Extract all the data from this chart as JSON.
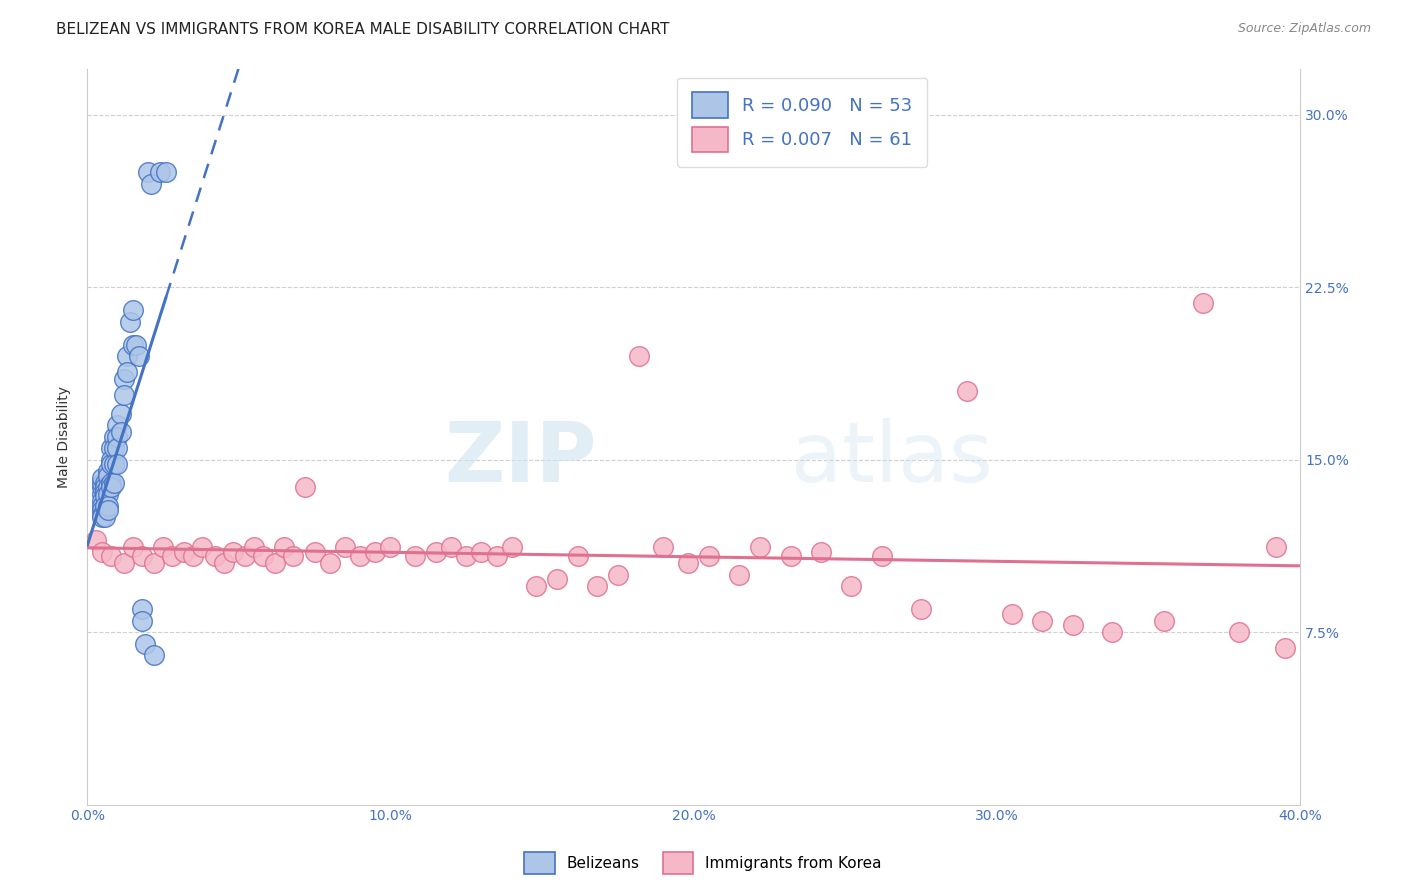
{
  "title": "BELIZEAN VS IMMIGRANTS FROM KOREA MALE DISABILITY CORRELATION CHART",
  "source": "Source: ZipAtlas.com",
  "ylabel_label": "Male Disability",
  "xlim": [
    0.0,
    0.4
  ],
  "ylim": [
    0.0,
    0.32
  ],
  "xticks": [
    0.0,
    0.1,
    0.2,
    0.3,
    0.4
  ],
  "xtick_labels": [
    "0.0%",
    "10.0%",
    "20.0%",
    "30.0%",
    "40.0%"
  ],
  "yticks": [
    0.075,
    0.15,
    0.225,
    0.3
  ],
  "ytick_labels": [
    "7.5%",
    "15.0%",
    "22.5%",
    "30.0%"
  ],
  "belizean_R": 0.09,
  "belizean_N": 53,
  "korea_R": 0.007,
  "korea_N": 61,
  "belizean_color": "#adc6e8",
  "korea_color": "#f5b8c8",
  "belizean_line_color": "#4472c4",
  "korea_line_color": "#e07090",
  "watermark": "ZIPatlas",
  "belizean_x": [
    0.005,
    0.005,
    0.005,
    0.005,
    0.005,
    0.005,
    0.005,
    0.005,
    0.005,
    0.006,
    0.006,
    0.006,
    0.006,
    0.006,
    0.006,
    0.007,
    0.007,
    0.007,
    0.007,
    0.007,
    0.007,
    0.008,
    0.008,
    0.008,
    0.008,
    0.008,
    0.009,
    0.009,
    0.009,
    0.009,
    0.01,
    0.01,
    0.01,
    0.01,
    0.011,
    0.011,
    0.012,
    0.012,
    0.013,
    0.013,
    0.014,
    0.015,
    0.015,
    0.016,
    0.017,
    0.018,
    0.018,
    0.019,
    0.02,
    0.021,
    0.022,
    0.024,
    0.026
  ],
  "belizean_y": [
    0.135,
    0.138,
    0.14,
    0.142,
    0.132,
    0.13,
    0.128,
    0.126,
    0.125,
    0.14,
    0.138,
    0.136,
    0.134,
    0.13,
    0.125,
    0.145,
    0.143,
    0.138,
    0.135,
    0.13,
    0.128,
    0.155,
    0.15,
    0.148,
    0.14,
    0.138,
    0.16,
    0.155,
    0.148,
    0.14,
    0.165,
    0.16,
    0.155,
    0.148,
    0.17,
    0.162,
    0.185,
    0.178,
    0.195,
    0.188,
    0.21,
    0.215,
    0.2,
    0.2,
    0.195,
    0.085,
    0.08,
    0.07,
    0.275,
    0.27,
    0.065,
    0.275,
    0.275
  ],
  "korea_x": [
    0.003,
    0.005,
    0.008,
    0.012,
    0.015,
    0.018,
    0.022,
    0.025,
    0.028,
    0.032,
    0.035,
    0.038,
    0.042,
    0.045,
    0.048,
    0.052,
    0.055,
    0.058,
    0.062,
    0.065,
    0.068,
    0.072,
    0.075,
    0.08,
    0.085,
    0.09,
    0.095,
    0.1,
    0.108,
    0.115,
    0.12,
    0.125,
    0.13,
    0.135,
    0.14,
    0.148,
    0.155,
    0.162,
    0.168,
    0.175,
    0.182,
    0.19,
    0.198,
    0.205,
    0.215,
    0.222,
    0.232,
    0.242,
    0.252,
    0.262,
    0.275,
    0.29,
    0.305,
    0.315,
    0.325,
    0.338,
    0.355,
    0.368,
    0.38,
    0.392,
    0.395
  ],
  "korea_y": [
    0.115,
    0.11,
    0.108,
    0.105,
    0.112,
    0.108,
    0.105,
    0.112,
    0.108,
    0.11,
    0.108,
    0.112,
    0.108,
    0.105,
    0.11,
    0.108,
    0.112,
    0.108,
    0.105,
    0.112,
    0.108,
    0.138,
    0.11,
    0.105,
    0.112,
    0.108,
    0.11,
    0.112,
    0.108,
    0.11,
    0.112,
    0.108,
    0.11,
    0.108,
    0.112,
    0.095,
    0.098,
    0.108,
    0.095,
    0.1,
    0.195,
    0.112,
    0.105,
    0.108,
    0.1,
    0.112,
    0.108,
    0.11,
    0.095,
    0.108,
    0.085,
    0.18,
    0.083,
    0.08,
    0.078,
    0.075,
    0.08,
    0.218,
    0.075,
    0.112,
    0.068
  ],
  "background_color": "#ffffff",
  "grid_color": "#d0d0d0",
  "title_fontsize": 11,
  "axis_label_fontsize": 10,
  "tick_fontsize": 10,
  "legend_fontsize": 12
}
